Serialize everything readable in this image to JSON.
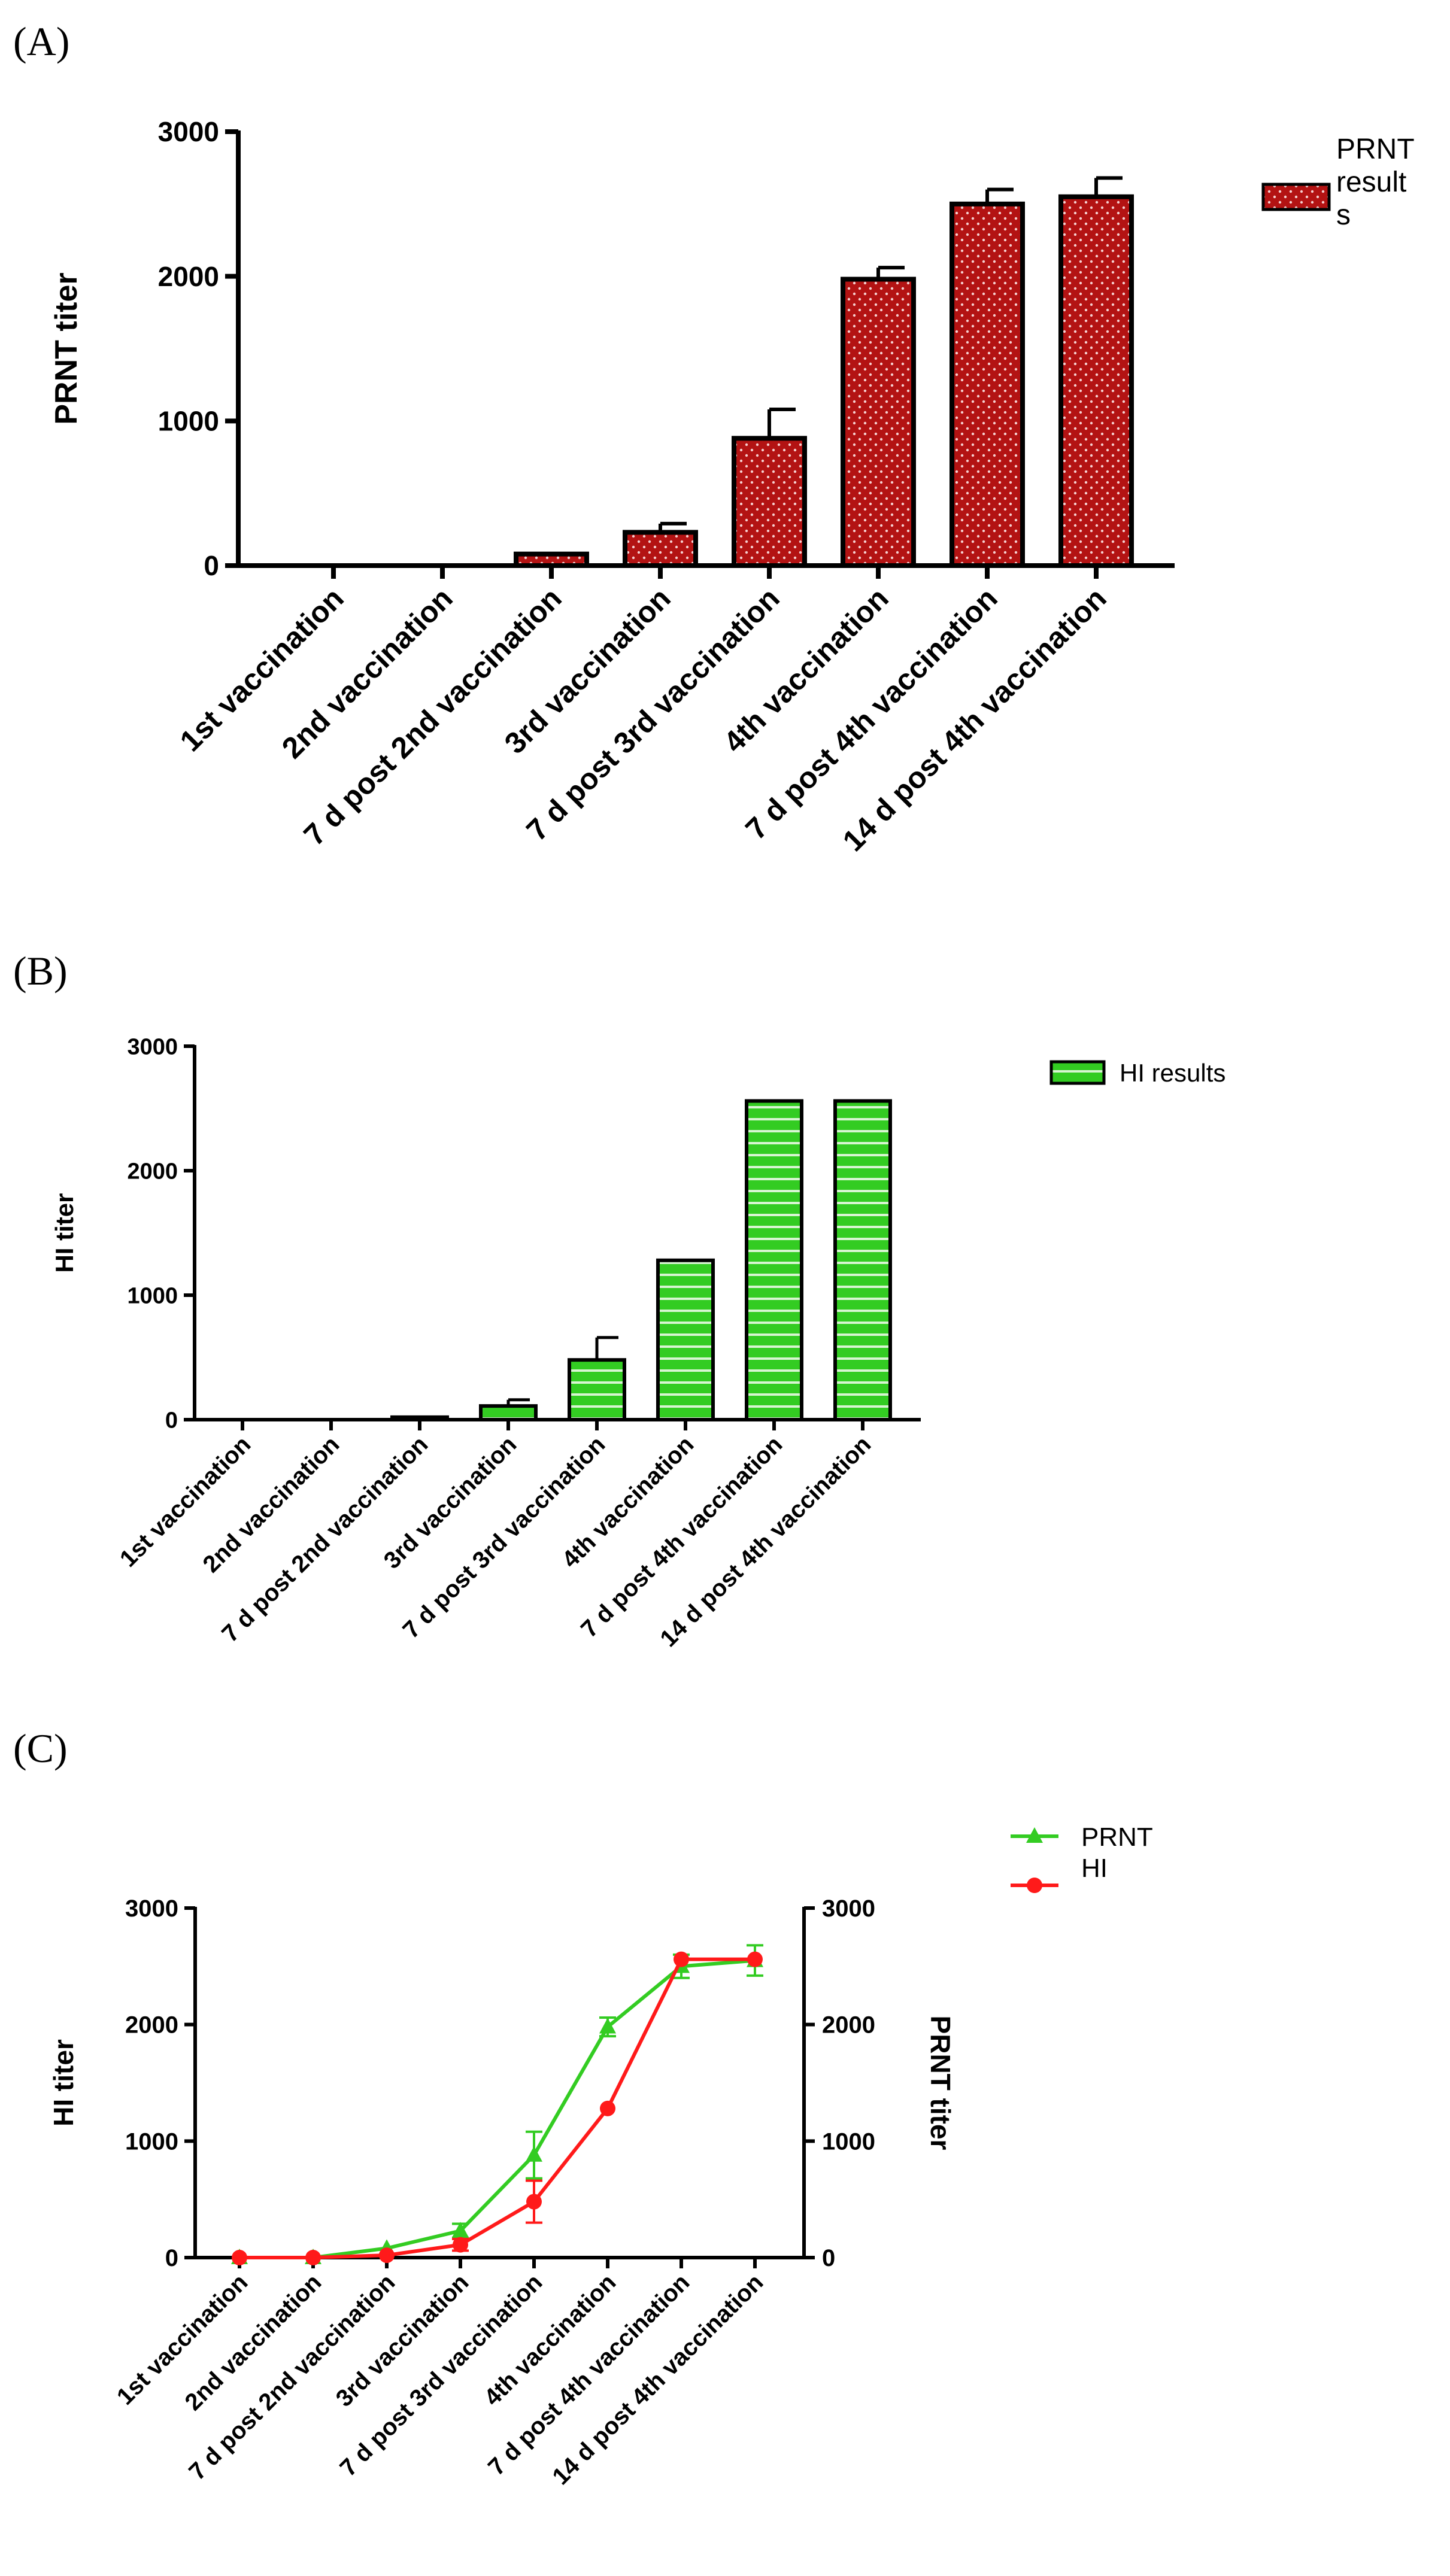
{
  "chart_data": [
    {
      "panel": "(A)",
      "type": "bar",
      "title": "",
      "xlabel": "",
      "ylabel": "PRNT titer",
      "ylim": [
        0,
        3000
      ],
      "yticks": [
        "0",
        "1000",
        "2000",
        "3000"
      ],
      "categories": [
        "1st vaccination",
        "2nd vaccination",
        "7 d post 2nd vaccination",
        "3rd vaccination",
        "7 d post 3rd vaccination",
        "4th vaccination",
        "7 d post 4th vaccination",
        "14 d post 4th vaccination"
      ],
      "series": [
        {
          "name": "PRNT results",
          "legend_lines": [
            "PRNT",
            "result",
            "s"
          ],
          "values": [
            0,
            0,
            80,
            230,
            880,
            1980,
            2500,
            2550
          ],
          "errors": [
            0,
            0,
            0,
            60,
            200,
            80,
            100,
            130
          ],
          "color": "#b31313",
          "pattern": "dots"
        }
      ],
      "legend": "top-right"
    },
    {
      "panel": "(B)",
      "type": "bar",
      "title": "",
      "xlabel": "",
      "ylabel": "HI titer",
      "ylim": [
        0,
        3000
      ],
      "yticks": [
        "0",
        "1000",
        "2000",
        "3000"
      ],
      "categories": [
        "1st vaccination",
        "2nd vaccination",
        "7 d post 2nd vaccination",
        "3rd vaccination",
        "7 d post 3rd vaccination",
        "4th vaccination",
        "7 d post 4th vaccination",
        "14 d post 4th vaccination"
      ],
      "series": [
        {
          "name": "HI results",
          "values": [
            0,
            0,
            20,
            110,
            480,
            1280,
            2560,
            2560
          ],
          "errors": [
            0,
            0,
            0,
            50,
            180,
            0,
            0,
            0
          ],
          "color": "#33cc22",
          "pattern": "stripes"
        }
      ],
      "legend": "top-right"
    },
    {
      "panel": "(C)",
      "type": "line",
      "title": "",
      "xlabel": "",
      "ylabel": "HI titer",
      "ylabel_right": "PRNT titer",
      "ylim": [
        0,
        3000
      ],
      "yticks": [
        "0",
        "1000",
        "2000",
        "3000"
      ],
      "categories": [
        "1st vaccination",
        "2nd vaccination",
        "7 d post 2nd vaccination",
        "3rd vaccination",
        "7 d post 3rd vaccination",
        "4th vaccination",
        "7 d post 4th vaccination",
        "14 d post 4th vaccination"
      ],
      "series": [
        {
          "name": "PRNT",
          "axis": "right",
          "values": [
            0,
            0,
            80,
            230,
            880,
            1980,
            2500,
            2550
          ],
          "errors": [
            0,
            0,
            0,
            60,
            200,
            80,
            100,
            130
          ],
          "color": "#33cc22",
          "marker": "triangle"
        },
        {
          "name": "HI",
          "axis": "left",
          "values": [
            0,
            0,
            20,
            110,
            480,
            1280,
            2560,
            2560
          ],
          "errors": [
            0,
            0,
            0,
            50,
            180,
            0,
            0,
            0
          ],
          "color": "#ff1a1a",
          "marker": "circle"
        }
      ],
      "legend": "top-right"
    }
  ]
}
